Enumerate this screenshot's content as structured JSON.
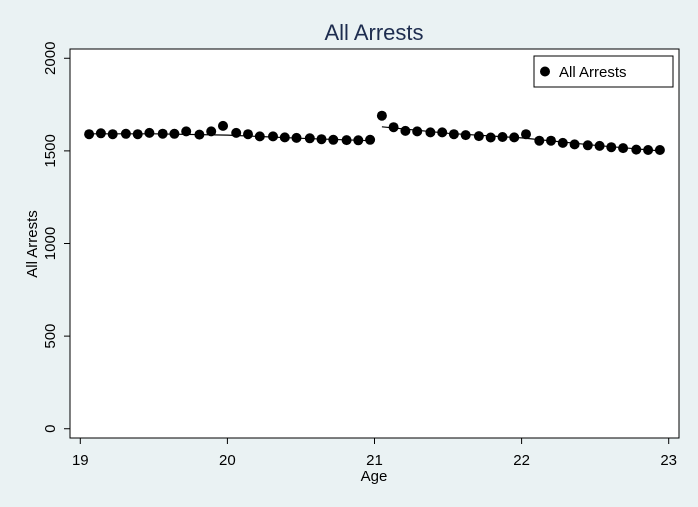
{
  "chart_data": {
    "type": "scatter",
    "title": "All Arrests",
    "xlabel": "Age",
    "ylabel": "All Arrests",
    "xlim": [
      18.93,
      23.07
    ],
    "ylim": [
      -50,
      2050
    ],
    "xticks": [
      19,
      20,
      21,
      22,
      23
    ],
    "yticks": [
      0,
      500,
      1000,
      1500,
      2000
    ],
    "grid": false,
    "legend_position": "top-right",
    "colors": {
      "background": "#eaf2f3",
      "plot_bg": "#ffffff",
      "marker": "#000000",
      "title": "#1e2d4f"
    },
    "series": [
      {
        "name": "All Arrests",
        "marker": "filled-circle",
        "x": [
          19.06,
          19.14,
          19.22,
          19.31,
          19.39,
          19.47,
          19.56,
          19.64,
          19.72,
          19.81,
          19.89,
          19.97,
          20.06,
          20.14,
          20.22,
          20.31,
          20.39,
          20.47,
          20.56,
          20.64,
          20.72,
          20.81,
          20.89,
          20.97,
          21.05,
          21.13,
          21.21,
          21.29,
          21.38,
          21.46,
          21.54,
          21.62,
          21.71,
          21.79,
          21.87,
          21.95,
          22.03,
          22.12,
          22.2,
          22.28,
          22.36,
          22.45,
          22.53,
          22.61,
          22.69,
          22.78,
          22.86,
          22.94
        ],
        "y": [
          1590,
          1595,
          1590,
          1592,
          1590,
          1597,
          1593,
          1592,
          1605,
          1588,
          1605,
          1635,
          1597,
          1590,
          1578,
          1578,
          1573,
          1570,
          1568,
          1563,
          1560,
          1558,
          1557,
          1560,
          1690,
          1628,
          1608,
          1605,
          1600,
          1600,
          1590,
          1585,
          1580,
          1572,
          1575,
          1573,
          1590,
          1555,
          1555,
          1543,
          1535,
          1530,
          1527,
          1520,
          1515,
          1507,
          1505,
          1505
        ]
      }
    ],
    "fit_lines": [
      {
        "x": [
          19.06,
          19.5,
          20.0,
          20.5,
          20.97
        ],
        "y": [
          1592,
          1592,
          1585,
          1568,
          1555
        ]
      },
      {
        "x": [
          21.05,
          21.5,
          22.0,
          22.5,
          22.94
        ],
        "y": [
          1630,
          1595,
          1570,
          1530,
          1500
        ]
      }
    ]
  }
}
